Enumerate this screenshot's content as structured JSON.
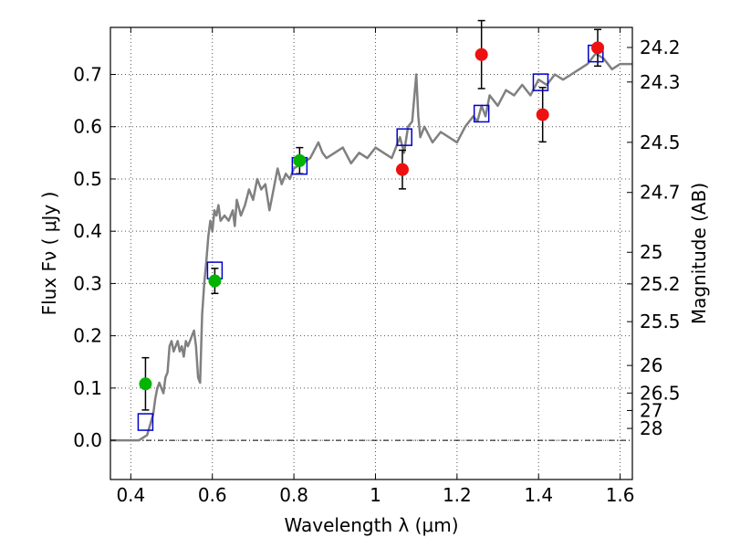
{
  "chart_data": {
    "type": "scatter",
    "xlabel": "Wavelength  λ (μm)",
    "ylabel": "Flux  Fν  ( μJy )",
    "ylabel_right": "Magnitude (AB)",
    "xlim": [
      0.35,
      1.63
    ],
    "ylim": [
      -0.075,
      0.79
    ],
    "grid": true,
    "x_ticks": [
      0.4,
      0.6,
      0.8,
      1.0,
      1.2,
      1.4,
      1.6
    ],
    "x_tick_labels": [
      "0.4",
      "0.6",
      "0.8",
      "1",
      "1.2",
      "1.4",
      "1.6"
    ],
    "y_ticks": [
      0.0,
      0.1,
      0.2,
      0.3,
      0.4,
      0.5,
      0.6,
      0.7
    ],
    "y_tick_labels": [
      "0.0",
      "0.1",
      "0.2",
      "0.3",
      "0.4",
      "0.5",
      "0.6",
      "0.7"
    ],
    "right_ticks": [
      {
        "label": "24.2",
        "flux": 0.7516
      },
      {
        "label": "24.3",
        "flux": 0.6855
      },
      {
        "label": "24.5",
        "flux": 0.5701
      },
      {
        "label": "24.7",
        "flux": 0.4742
      },
      {
        "label": "25",
        "flux": 0.3597
      },
      {
        "label": "25.2",
        "flux": 0.2992
      },
      {
        "label": "25.5",
        "flux": 0.227
      },
      {
        "label": "26",
        "flux": 0.1432
      },
      {
        "label": "26.5",
        "flux": 0.0904
      },
      {
        "label": "27",
        "flux": 0.057
      },
      {
        "label": "28",
        "flux": 0.0227
      }
    ],
    "colors": {
      "model": "#808080",
      "green": "#00b400",
      "red": "#ee1111",
      "box": "#0000cc",
      "grid": "#555555",
      "zero": "#000000"
    },
    "series": [
      {
        "name": "model spectrum",
        "kind": "line",
        "x": [
          0.35,
          0.42,
          0.44,
          0.455,
          0.46,
          0.465,
          0.47,
          0.48,
          0.485,
          0.49,
          0.495,
          0.5,
          0.505,
          0.51,
          0.515,
          0.52,
          0.525,
          0.53,
          0.535,
          0.54,
          0.55,
          0.555,
          0.56,
          0.565,
          0.57,
          0.575,
          0.58,
          0.585,
          0.59,
          0.595,
          0.6,
          0.605,
          0.61,
          0.615,
          0.62,
          0.63,
          0.64,
          0.65,
          0.655,
          0.66,
          0.67,
          0.68,
          0.69,
          0.7,
          0.71,
          0.72,
          0.73,
          0.74,
          0.75,
          0.76,
          0.77,
          0.78,
          0.79,
          0.8,
          0.82,
          0.84,
          0.86,
          0.87,
          0.88,
          0.9,
          0.92,
          0.94,
          0.96,
          0.98,
          1.0,
          1.02,
          1.04,
          1.06,
          1.07,
          1.08,
          1.09,
          1.1,
          1.105,
          1.11,
          1.12,
          1.14,
          1.16,
          1.18,
          1.2,
          1.22,
          1.24,
          1.25,
          1.26,
          1.27,
          1.28,
          1.3,
          1.32,
          1.34,
          1.36,
          1.38,
          1.4,
          1.42,
          1.44,
          1.46,
          1.48,
          1.5,
          1.52,
          1.54,
          1.56,
          1.58,
          1.6,
          1.63
        ],
        "y": [
          0.0,
          0.0,
          0.01,
          0.05,
          0.08,
          0.1,
          0.11,
          0.09,
          0.12,
          0.13,
          0.18,
          0.19,
          0.17,
          0.18,
          0.19,
          0.17,
          0.18,
          0.16,
          0.19,
          0.18,
          0.2,
          0.21,
          0.18,
          0.12,
          0.11,
          0.24,
          0.3,
          0.34,
          0.39,
          0.42,
          0.4,
          0.44,
          0.43,
          0.45,
          0.42,
          0.43,
          0.42,
          0.44,
          0.41,
          0.46,
          0.43,
          0.45,
          0.48,
          0.46,
          0.5,
          0.48,
          0.49,
          0.44,
          0.48,
          0.52,
          0.49,
          0.51,
          0.5,
          0.52,
          0.53,
          0.54,
          0.57,
          0.55,
          0.54,
          0.55,
          0.56,
          0.53,
          0.55,
          0.54,
          0.56,
          0.55,
          0.54,
          0.58,
          0.55,
          0.6,
          0.61,
          0.7,
          0.62,
          0.58,
          0.6,
          0.57,
          0.59,
          0.58,
          0.57,
          0.6,
          0.62,
          0.61,
          0.64,
          0.62,
          0.66,
          0.64,
          0.67,
          0.66,
          0.68,
          0.66,
          0.69,
          0.68,
          0.7,
          0.69,
          0.7,
          0.71,
          0.72,
          0.74,
          0.73,
          0.71,
          0.72,
          0.72
        ]
      },
      {
        "name": "model photometry",
        "kind": "box",
        "x": [
          0.436,
          0.606,
          0.814,
          1.071,
          1.26,
          1.405,
          1.54
        ],
        "y": [
          0.035,
          0.325,
          0.525,
          0.58,
          0.625,
          0.685,
          0.74
        ]
      },
      {
        "name": "observed (green)",
        "kind": "point",
        "x": [
          0.436,
          0.606,
          0.814
        ],
        "y": [
          0.108,
          0.305,
          0.535
        ],
        "yerr": [
          0.05,
          0.024,
          0.025
        ]
      },
      {
        "name": "observed (red)",
        "kind": "point",
        "x": [
          1.066,
          1.26,
          1.41,
          1.545
        ],
        "y": [
          0.518,
          0.738,
          0.623,
          0.751
        ],
        "yerr": [
          0.037,
          0.065,
          0.052,
          0.035
        ]
      }
    ]
  }
}
